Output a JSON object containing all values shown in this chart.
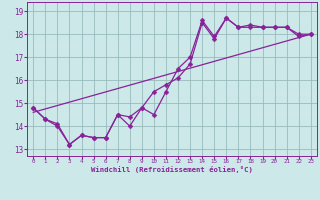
{
  "xlabel": "Windchill (Refroidissement éolien,°C)",
  "xlim": [
    -0.5,
    23.5
  ],
  "ylim": [
    12.7,
    19.4
  ],
  "xticks": [
    0,
    1,
    2,
    3,
    4,
    5,
    6,
    7,
    8,
    9,
    10,
    11,
    12,
    13,
    14,
    15,
    16,
    17,
    18,
    19,
    20,
    21,
    22,
    23
  ],
  "yticks": [
    13,
    14,
    15,
    16,
    17,
    18,
    19
  ],
  "bg_color": "#cce8e8",
  "line_color": "#882299",
  "grid_color": "#99bbbb",
  "series1_x": [
    0,
    1,
    2,
    3,
    4,
    5,
    6,
    7,
    8,
    9,
    10,
    11,
    12,
    13,
    14,
    15,
    16,
    17,
    18,
    19,
    20,
    21,
    22,
    23
  ],
  "series1_y": [
    14.8,
    14.3,
    14.0,
    13.2,
    13.6,
    13.5,
    13.5,
    14.5,
    14.0,
    14.8,
    15.5,
    15.8,
    16.1,
    16.7,
    18.5,
    17.8,
    18.7,
    18.3,
    18.3,
    18.3,
    18.3,
    18.3,
    17.9,
    18.0
  ],
  "series2_x": [
    0,
    1,
    2,
    3,
    4,
    5,
    6,
    7,
    8,
    9,
    10,
    11,
    12,
    13,
    14,
    15,
    16,
    17,
    18,
    19,
    20,
    21,
    22,
    23
  ],
  "series2_y": [
    14.8,
    14.3,
    14.1,
    13.2,
    13.6,
    13.5,
    13.5,
    14.5,
    14.4,
    14.8,
    14.5,
    15.5,
    16.5,
    17.0,
    18.6,
    17.9,
    18.7,
    18.3,
    18.4,
    18.3,
    18.3,
    18.3,
    18.0,
    18.0
  ],
  "series3_x": [
    0,
    23
  ],
  "series3_y": [
    14.6,
    18.0
  ],
  "marker": "D",
  "markersize": 2.5
}
